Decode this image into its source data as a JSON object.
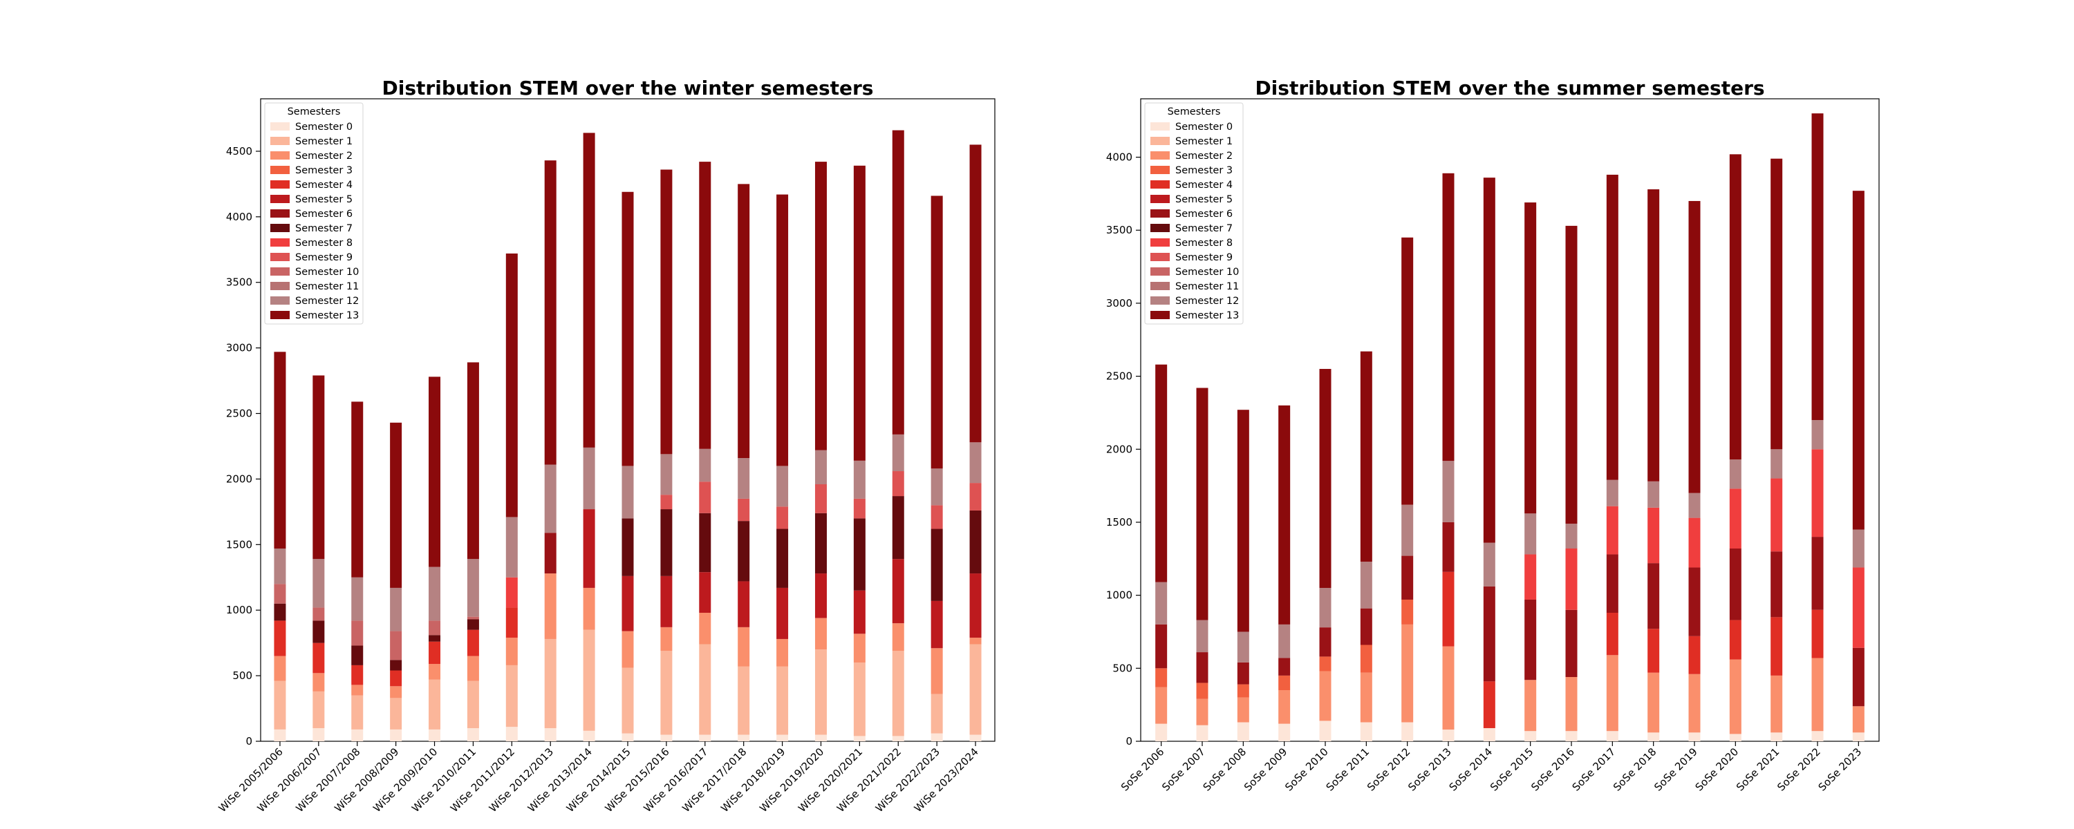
{
  "semester_colors": [
    "#fde5d8",
    "#fbb69a",
    "#fa8f6c",
    "#f2603f",
    "#e02e24",
    "#bd1a1e",
    "#9a1216",
    "#650b0e",
    "#f03e3e",
    "#de5252",
    "#c96464",
    "#b77272",
    "#b58282",
    "#8b0a0c"
  ],
  "chart_data": [
    {
      "type": "bar",
      "stacked": true,
      "title": "Distribution STEM over the winter semesters",
      "xlabel": "",
      "ylabel": "",
      "ylim": [
        0,
        4900
      ],
      "yticks": [
        0,
        500,
        1000,
        1500,
        2000,
        2500,
        3000,
        3500,
        4000,
        4500
      ],
      "legend": {
        "title": "Semesters",
        "position": "top-left"
      },
      "categories": [
        "WiSe 2005/2006",
        "WiSe 2006/2007",
        "WiSe 2007/2008",
        "WiSe 2008/2009",
        "WiSe 2009/2010",
        "WiSe 2010/2011",
        "WiSe 2011/2012",
        "WiSe 2012/2013",
        "WiSe 2013/2014",
        "WiSe 2014/2015",
        "WiSe 2015/2016",
        "WiSe 2016/2017",
        "WiSe 2017/2018",
        "WiSe 2018/2019",
        "WiSe 2019/2020",
        "WiSe 2020/2021",
        "WiSe 2021/2022",
        "WiSe 2022/2023",
        "WiSe 2023/2024"
      ],
      "series": [
        {
          "name": "Semester 0",
          "values": [
            90,
            100,
            90,
            90,
            90,
            100,
            110,
            100,
            80,
            60,
            50,
            50,
            50,
            50,
            50,
            40,
            40,
            60,
            50
          ]
        },
        {
          "name": "Semester 1",
          "values": [
            370,
            280,
            260,
            240,
            380,
            360,
            470,
            680,
            770,
            500,
            640,
            690,
            520,
            520,
            650,
            560,
            650,
            300,
            690
          ]
        },
        {
          "name": "Semester 2",
          "values": [
            190,
            140,
            80,
            90,
            120,
            190,
            210,
            500,
            320,
            280,
            180,
            240,
            300,
            210,
            240,
            220,
            210,
            350,
            50
          ]
        },
        {
          "name": "Semester 3",
          "values": [
            0,
            0,
            0,
            0,
            0,
            0,
            0,
            0,
            0,
            0,
            0,
            0,
            0,
            0,
            0,
            0,
            0,
            0,
            0
          ]
        },
        {
          "name": "Semester 4",
          "values": [
            270,
            230,
            150,
            120,
            170,
            200,
            230,
            0,
            0,
            0,
            0,
            0,
            0,
            0,
            0,
            0,
            0,
            0,
            0
          ]
        },
        {
          "name": "Semester 5",
          "values": [
            0,
            0,
            0,
            0,
            0,
            0,
            0,
            0,
            600,
            420,
            390,
            310,
            350,
            390,
            340,
            330,
            490,
            360,
            490
          ]
        },
        {
          "name": "Semester 6",
          "values": [
            0,
            0,
            0,
            0,
            0,
            0,
            0,
            310,
            0,
            0,
            0,
            0,
            0,
            0,
            0,
            0,
            0,
            0,
            0
          ]
        },
        {
          "name": "Semester 7",
          "values": [
            130,
            170,
            150,
            80,
            50,
            80,
            0,
            0,
            0,
            440,
            510,
            450,
            460,
            450,
            460,
            550,
            480,
            550,
            480
          ]
        },
        {
          "name": "Semester 8",
          "values": [
            0,
            0,
            0,
            0,
            0,
            0,
            230,
            0,
            0,
            0,
            0,
            0,
            0,
            0,
            0,
            0,
            0,
            0,
            0
          ]
        },
        {
          "name": "Semester 9",
          "values": [
            0,
            0,
            0,
            0,
            0,
            0,
            0,
            0,
            0,
            0,
            110,
            240,
            170,
            170,
            220,
            150,
            190,
            180,
            210
          ]
        },
        {
          "name": "Semester 10",
          "values": [
            150,
            100,
            190,
            220,
            110,
            20,
            0,
            0,
            0,
            0,
            0,
            0,
            0,
            0,
            0,
            0,
            0,
            0,
            0
          ]
        },
        {
          "name": "Semester 11",
          "values": [
            0,
            0,
            0,
            0,
            0,
            0,
            0,
            0,
            0,
            0,
            0,
            0,
            0,
            0,
            0,
            0,
            0,
            0,
            0
          ]
        },
        {
          "name": "Semester 12",
          "values": [
            270,
            370,
            330,
            330,
            410,
            440,
            460,
            520,
            470,
            400,
            310,
            250,
            310,
            310,
            260,
            290,
            280,
            280,
            310
          ]
        },
        {
          "name": "Semester 13",
          "values": [
            1500,
            1400,
            1340,
            1260,
            1450,
            1500,
            2010,
            2320,
            2400,
            2090,
            2170,
            2190,
            2090,
            2070,
            2200,
            2250,
            2320,
            2080,
            2270
          ]
        }
      ]
    },
    {
      "type": "bar",
      "stacked": true,
      "title": "Distribution STEM over the summer semesters",
      "xlabel": "",
      "ylabel": "",
      "ylim": [
        0,
        4400
      ],
      "yticks": [
        0,
        500,
        1000,
        1500,
        2000,
        2500,
        3000,
        3500,
        4000
      ],
      "legend": {
        "title": "Semesters",
        "position": "top-left"
      },
      "categories": [
        "SoSe 2006",
        "SoSe 2007",
        "SoSe 2008",
        "SoSe 2009",
        "SoSe 2010",
        "SoSe 2011",
        "SoSe 2012",
        "SoSe 2013",
        "SoSe 2014",
        "SoSe 2015",
        "SoSe 2016",
        "SoSe 2017",
        "SoSe 2018",
        "SoSe 2019",
        "SoSe 2020",
        "SoSe 2021",
        "SoSe 2022",
        "SoSe 2023"
      ],
      "series": [
        {
          "name": "Semester 0",
          "values": [
            120,
            110,
            130,
            120,
            140,
            130,
            130,
            80,
            90,
            70,
            70,
            70,
            60,
            60,
            50,
            60,
            70,
            60
          ]
        },
        {
          "name": "Semester 1",
          "values": [
            0,
            0,
            0,
            0,
            0,
            0,
            0,
            0,
            0,
            0,
            0,
            0,
            0,
            0,
            0,
            0,
            0,
            0
          ]
        },
        {
          "name": "Semester 2",
          "values": [
            250,
            180,
            170,
            230,
            340,
            340,
            670,
            570,
            0,
            350,
            370,
            520,
            410,
            400,
            510,
            390,
            500,
            180
          ]
        },
        {
          "name": "Semester 3",
          "values": [
            130,
            110,
            90,
            100,
            100,
            190,
            170,
            0,
            0,
            0,
            0,
            0,
            0,
            0,
            0,
            0,
            0,
            0
          ]
        },
        {
          "name": "Semester 4",
          "values": [
            0,
            0,
            0,
            0,
            0,
            0,
            0,
            510,
            320,
            0,
            0,
            290,
            300,
            260,
            270,
            400,
            330,
            0
          ]
        },
        {
          "name": "Semester 5",
          "values": [
            0,
            0,
            0,
            0,
            0,
            0,
            0,
            0,
            0,
            0,
            0,
            0,
            0,
            0,
            0,
            0,
            0,
            0
          ]
        },
        {
          "name": "Semester 6",
          "values": [
            300,
            210,
            150,
            120,
            200,
            250,
            300,
            340,
            650,
            550,
            460,
            400,
            450,
            470,
            490,
            450,
            500,
            400
          ]
        },
        {
          "name": "Semester 7",
          "values": [
            0,
            0,
            0,
            0,
            0,
            0,
            0,
            0,
            0,
            0,
            0,
            0,
            0,
            0,
            0,
            0,
            0,
            0
          ]
        },
        {
          "name": "Semester 8",
          "values": [
            0,
            0,
            0,
            0,
            0,
            0,
            0,
            0,
            0,
            310,
            420,
            330,
            380,
            340,
            410,
            500,
            600,
            550
          ]
        },
        {
          "name": "Semester 9",
          "values": [
            0,
            0,
            0,
            0,
            0,
            0,
            0,
            0,
            0,
            0,
            0,
            0,
            0,
            0,
            0,
            0,
            0,
            0
          ]
        },
        {
          "name": "Semester 10",
          "values": [
            0,
            0,
            0,
            0,
            0,
            0,
            0,
            0,
            0,
            0,
            0,
            0,
            0,
            0,
            0,
            0,
            0,
            0
          ]
        },
        {
          "name": "Semester 11",
          "values": [
            0,
            0,
            0,
            0,
            0,
            0,
            0,
            0,
            0,
            0,
            0,
            0,
            0,
            0,
            0,
            0,
            0,
            0
          ]
        },
        {
          "name": "Semester 12",
          "values": [
            290,
            220,
            210,
            230,
            270,
            320,
            350,
            420,
            300,
            280,
            170,
            180,
            180,
            170,
            200,
            200,
            200,
            260
          ]
        },
        {
          "name": "Semester 13",
          "values": [
            1490,
            1590,
            1520,
            1500,
            1500,
            1440,
            1830,
            1970,
            2500,
            2130,
            2040,
            2090,
            2000,
            2000,
            2090,
            1990,
            2100,
            2320
          ]
        }
      ]
    }
  ]
}
